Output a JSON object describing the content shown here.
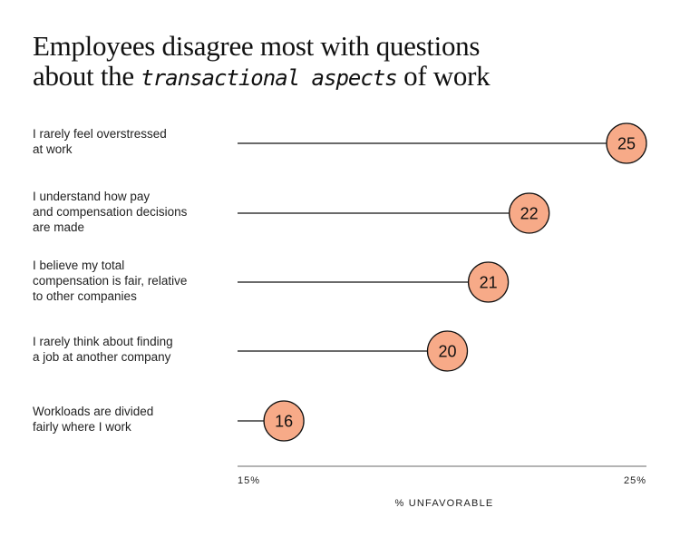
{
  "title": {
    "part1": "Employees disagree most with questions",
    "part2": "about the ",
    "emphasis": "transactional aspects",
    "part3": " of work"
  },
  "chart_data": {
    "type": "lollipop",
    "categories": [
      "I rarely feel overstressed at work",
      "I understand how pay and compensation decisions are made",
      "I believe my total compensation is fair, relative to other companies",
      "I rarely think about finding a job at another company",
      "Workloads are divided fairly where I work"
    ],
    "category_lines": [
      [
        "I rarely feel overstressed",
        "at work"
      ],
      [
        "I understand how pay",
        "and compensation decisions",
        "are made"
      ],
      [
        "I believe my total",
        "compensation is fair, relative",
        "to other companies"
      ],
      [
        "I rarely think about finding",
        "a job at another company"
      ],
      [
        "Workloads are divided",
        "fairly where I work"
      ]
    ],
    "values": [
      25,
      22,
      21,
      20,
      16
    ],
    "xlim": [
      15,
      25
    ],
    "xticks": [
      "15%",
      "25%"
    ],
    "xlabel": "% UNFAVORABLE",
    "grid": false,
    "colors": {
      "marker": "#F7AA88",
      "stroke": "#111111",
      "axis": "#888888"
    }
  }
}
